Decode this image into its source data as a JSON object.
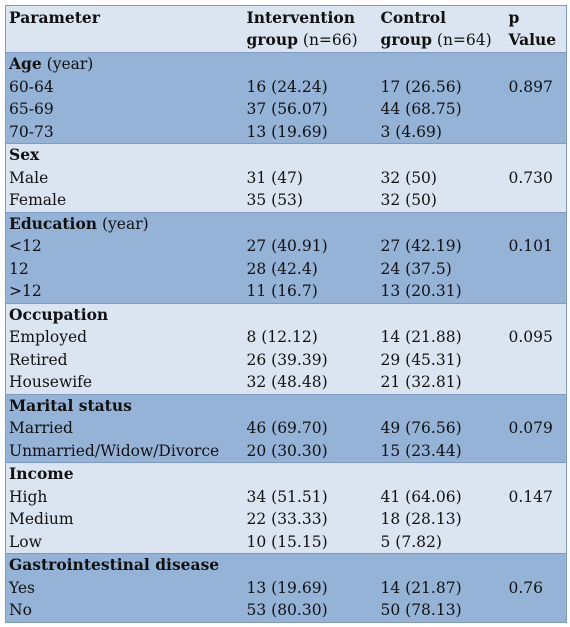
{
  "table": {
    "headers": {
      "parameter": "Parameter",
      "intervention_bold": "Intervention",
      "intervention_line2_bold": "group",
      "intervention_n": "(n=66)",
      "control_bold": "Control",
      "control_line2_bold": "group",
      "control_n": "(n=64)",
      "p_line1": "p",
      "p_line2": "Value"
    },
    "groups": [
      {
        "title": "Age",
        "unit": "(year)",
        "rows": [
          {
            "label": "60-64",
            "intervention": "16 (24.24)",
            "control": "17 (26.56)",
            "p": "0.897"
          },
          {
            "label": "65-69",
            "intervention": "37 (56.07)",
            "control": "44 (68.75)",
            "p": ""
          },
          {
            "label": "70-73",
            "intervention": "13 (19.69)",
            "control": "3 (4.69)",
            "p": ""
          }
        ]
      },
      {
        "title": "Sex",
        "unit": "",
        "rows": [
          {
            "label": "Male",
            "intervention": "31 (47)",
            "control": "32 (50)",
            "p": "0.730"
          },
          {
            "label": "Female",
            "intervention": "35 (53)",
            "control": "32 (50)",
            "p": ""
          }
        ]
      },
      {
        "title": "Education",
        "unit": "(year)",
        "rows": [
          {
            "label": "<12",
            "intervention": "27 (40.91)",
            "control": "27 (42.19)",
            "p": "0.101"
          },
          {
            "label": "12",
            "intervention": "28 (42.4)",
            "control": "24 (37.5)",
            "p": ""
          },
          {
            "label": ">12",
            "intervention": "11 (16.7)",
            "control": "13 (20.31)",
            "p": ""
          }
        ]
      },
      {
        "title": "Occupation",
        "unit": "",
        "rows": [
          {
            "label": "Employed",
            "intervention": "8 (12.12)",
            "control": "14 (21.88)",
            "p": "0.095"
          },
          {
            "label": "Retired",
            "intervention": "26 (39.39)",
            "control": "29 (45.31)",
            "p": ""
          },
          {
            "label": "Housewife",
            "intervention": "32 (48.48)",
            "control": "21 (32.81)",
            "p": ""
          }
        ]
      },
      {
        "title": "Marital status",
        "unit": "",
        "rows": [
          {
            "label": "Married",
            "intervention": "46 (69.70)",
            "control": "49 (76.56)",
            "p": "0.079"
          },
          {
            "label": "Unmarried/Widow/Divorce",
            "intervention": "20 (30.30)",
            "control": "15 (23.44)",
            "p": ""
          }
        ]
      },
      {
        "title": "Income",
        "unit": "",
        "rows": [
          {
            "label": "High",
            "intervention": "34 (51.51)",
            "control": "41 (64.06)",
            "p": "0.147"
          },
          {
            "label": "Medium",
            "intervention": "22 (33.33)",
            "control": "18 (28.13)",
            "p": ""
          },
          {
            "label": "Low",
            "intervention": "10 (15.15)",
            "control": "5 (7.82)",
            "p": ""
          }
        ]
      },
      {
        "title": "Gastrointestinal disease",
        "unit": "",
        "rows": [
          {
            "label": "Yes",
            "intervention": "13 (19.69)",
            "control": "14 (21.87)",
            "p": "0.76"
          },
          {
            "label": "No",
            "intervention": "53 (80.30)",
            "control": "50 (78.13)",
            "p": ""
          }
        ]
      }
    ]
  },
  "colors": {
    "header_bg": "#dbe5f1",
    "dark_band": "#95b3d7",
    "light_band": "#dbe5f1",
    "border": "#7f9bc4"
  }
}
